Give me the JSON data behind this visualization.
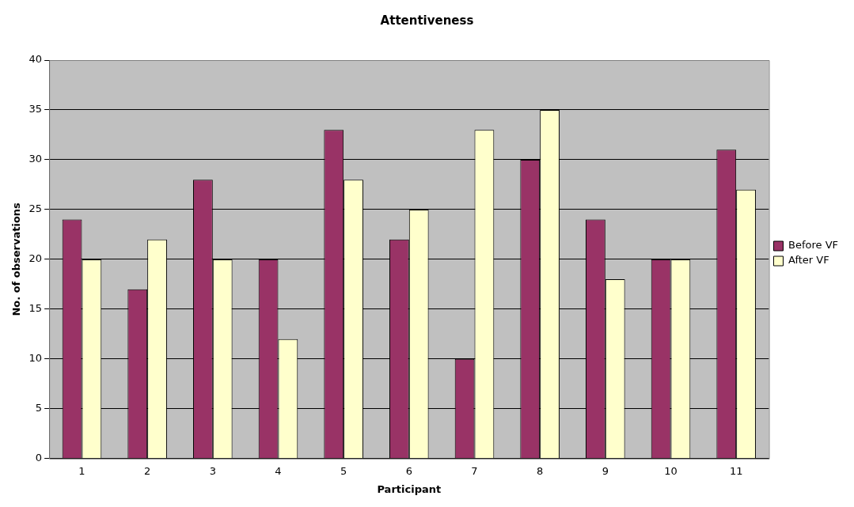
{
  "chart_data": {
    "type": "bar",
    "title": "Attentiveness",
    "xlabel": "Participant",
    "ylabel": "No. of observations",
    "categories": [
      "1",
      "2",
      "3",
      "4",
      "5",
      "6",
      "7",
      "8",
      "9",
      "10",
      "11"
    ],
    "series": [
      {
        "name": "Before VF",
        "color": "#993366",
        "values": [
          24,
          17,
          28,
          20,
          33,
          22,
          10,
          30,
          24,
          20,
          31
        ]
      },
      {
        "name": "After VF",
        "color": "#ffffcc",
        "values": [
          20,
          22,
          20,
          12,
          28,
          25,
          33,
          35,
          18,
          20,
          27
        ]
      }
    ],
    "ylim": [
      0,
      40
    ],
    "yticks": [
      0,
      5,
      10,
      15,
      20,
      25,
      30,
      35,
      40
    ],
    "grid": "y",
    "legend": "right"
  }
}
